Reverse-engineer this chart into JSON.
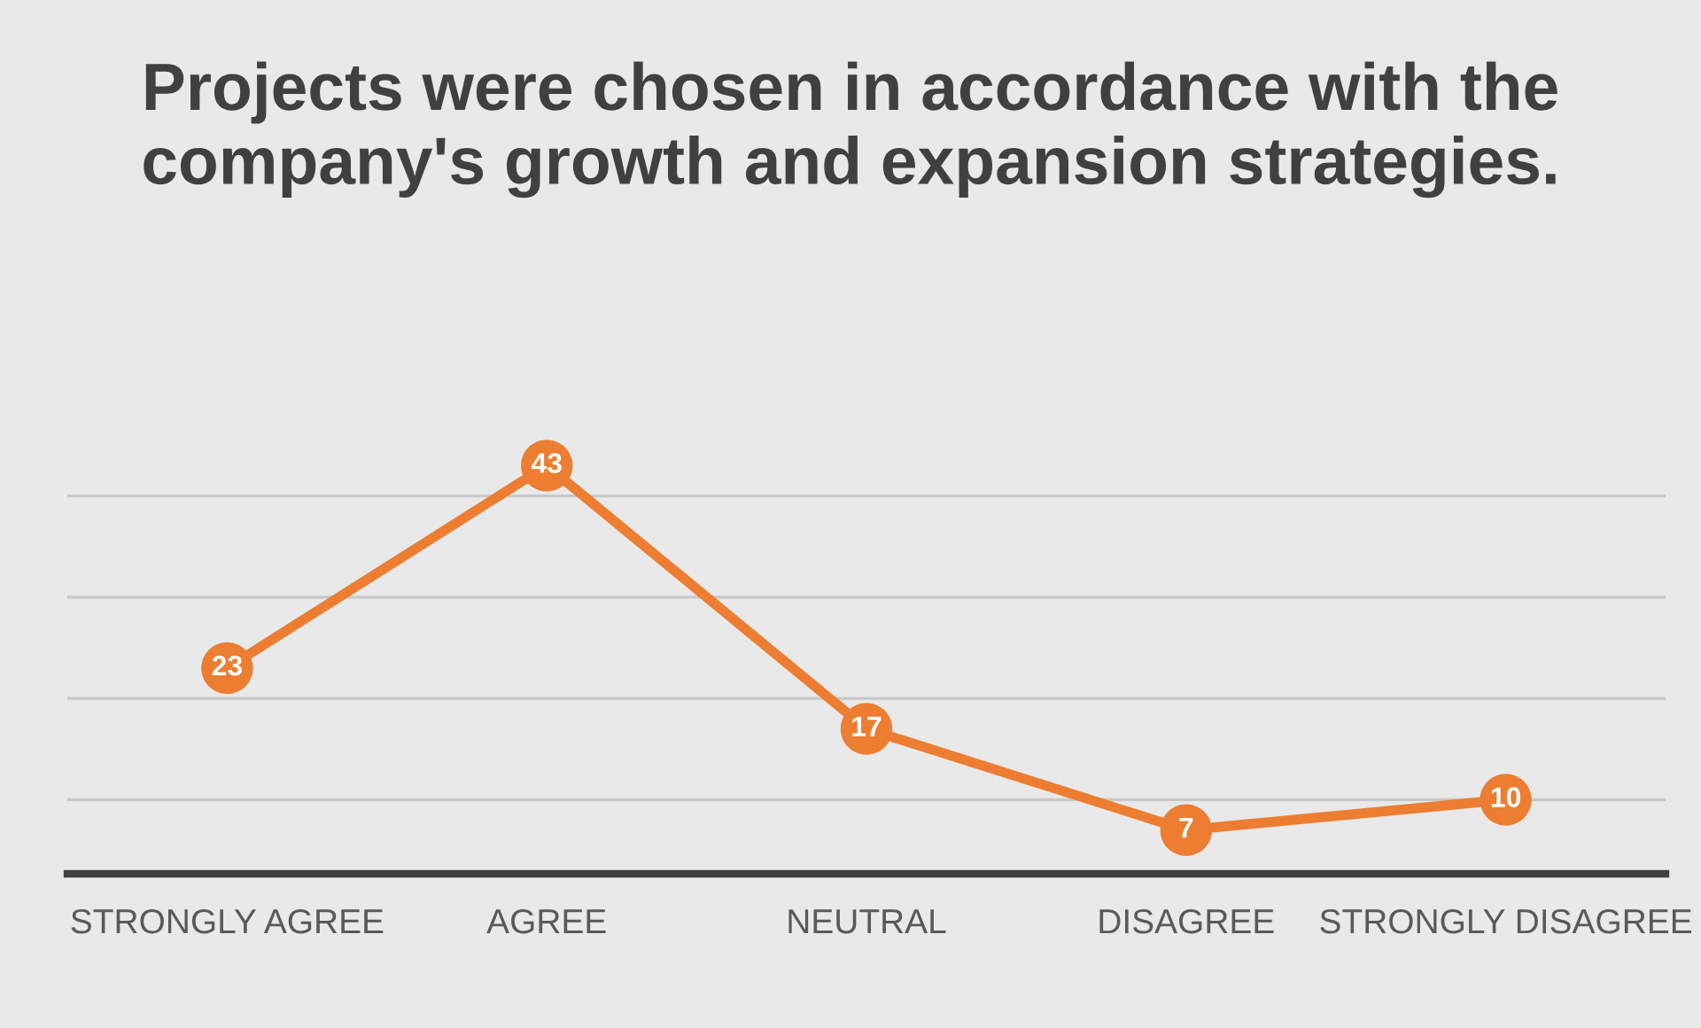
{
  "chart_data": {
    "type": "line",
    "title": "Projects were chosen in accordance with the company's growth and expansion strategies.",
    "categories": [
      "STRONGLY AGREE",
      "AGREE",
      "NEUTRAL",
      "DISAGREE",
      "STRONGLY DISAGREE"
    ],
    "series": [
      {
        "color": "#ed7d31",
        "values": [
          23,
          43,
          17,
          7,
          10
        ]
      }
    ],
    "grid": "y",
    "data_labels": true,
    "marker": "circle",
    "line_style": "solid"
  }
}
